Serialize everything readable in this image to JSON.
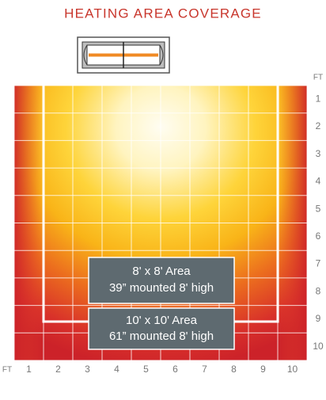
{
  "title": "HEATING AREA COVERAGE",
  "unit_right": "FT",
  "unit_bottom": "FT",
  "x_labels": [
    "1",
    "2",
    "3",
    "4",
    "5",
    "6",
    "7",
    "8",
    "9",
    "10"
  ],
  "y_labels": [
    "1",
    "2",
    "3",
    "4",
    "5",
    "6",
    "7",
    "8",
    "9",
    "10"
  ],
  "areas": [
    {
      "size": "8' x 8' Area",
      "detail": "39” mounted 8' high"
    },
    {
      "size": "10' x 10' Area",
      "detail": "61” mounted 8' high"
    }
  ]
}
